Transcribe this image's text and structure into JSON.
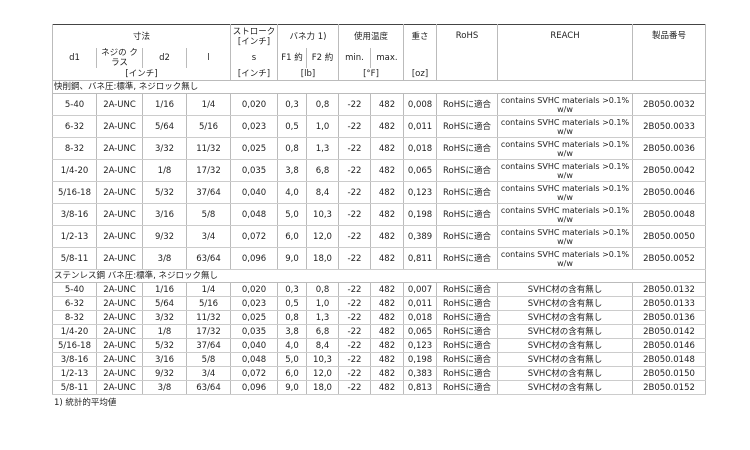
{
  "header": {
    "dimensions": "寸法",
    "stroke": "ストローク [インチ]",
    "spring_force": "バネ力 1)",
    "temp": "使用温度",
    "weight": "重さ",
    "rohs": "RoHS",
    "reach": "REACH",
    "part_no": "製品番号",
    "d1": "d1",
    "thread_class": "ネジの クラス",
    "d2": "d2",
    "l": "l",
    "s": "s",
    "f1": "F1 約",
    "f2": "F2 約",
    "min": "min.",
    "max": "max.",
    "unit_inch": "[インチ]",
    "unit_stroke": "[インチ]",
    "unit_lb": "[lb]",
    "unit_f": "[°F]",
    "unit_oz": "[oz]"
  },
  "sections": [
    {
      "title": "快削鋼、バネ圧:標準, ネジロック無し",
      "rows": [
        [
          "5-40",
          "2A-UNC",
          "1/16",
          "1/4",
          "0,020",
          "0,3",
          "0,8",
          "-22",
          "482",
          "0,008",
          "RoHSに適合",
          "contains SVHC materials >0.1% w/w",
          "2B050.0032"
        ],
        [
          "6-32",
          "2A-UNC",
          "5/64",
          "5/16",
          "0,023",
          "0,5",
          "1,0",
          "-22",
          "482",
          "0,011",
          "RoHSに適合",
          "contains SVHC materials >0.1% w/w",
          "2B050.0033"
        ],
        [
          "8-32",
          "2A-UNC",
          "3/32",
          "11/32",
          "0,025",
          "0,8",
          "1,3",
          "-22",
          "482",
          "0,018",
          "RoHSに適合",
          "contains SVHC materials >0.1% w/w",
          "2B050.0036"
        ],
        [
          "1/4-20",
          "2A-UNC",
          "1/8",
          "17/32",
          "0,035",
          "3,8",
          "6,8",
          "-22",
          "482",
          "0,065",
          "RoHSに適合",
          "contains SVHC materials >0.1% w/w",
          "2B050.0042"
        ],
        [
          "5/16-18",
          "2A-UNC",
          "5/32",
          "37/64",
          "0,040",
          "4,0",
          "8,4",
          "-22",
          "482",
          "0,123",
          "RoHSに適合",
          "contains SVHC materials >0.1% w/w",
          "2B050.0046"
        ],
        [
          "3/8-16",
          "2A-UNC",
          "3/16",
          "5/8",
          "0,048",
          "5,0",
          "10,3",
          "-22",
          "482",
          "0,198",
          "RoHSに適合",
          "contains SVHC materials >0.1% w/w",
          "2B050.0048"
        ],
        [
          "1/2-13",
          "2A-UNC",
          "9/32",
          "3/4",
          "0,072",
          "6,0",
          "12,0",
          "-22",
          "482",
          "0,389",
          "RoHSに適合",
          "contains SVHC materials >0.1% w/w",
          "2B050.0050"
        ],
        [
          "5/8-11",
          "2A-UNC",
          "3/8",
          "63/64",
          "0,096",
          "9,0",
          "18,0",
          "-22",
          "482",
          "0,811",
          "RoHSに適合",
          "contains SVHC materials >0.1% w/w",
          "2B050.0052"
        ]
      ]
    },
    {
      "title": "ステンレス鋼 バネ圧:標準, ネジロック無し",
      "rows": [
        [
          "5-40",
          "2A-UNC",
          "1/16",
          "1/4",
          "0,020",
          "0,3",
          "0,8",
          "-22",
          "482",
          "0,007",
          "RoHSに適合",
          "SVHC材の含有無し",
          "2B050.0132"
        ],
        [
          "6-32",
          "2A-UNC",
          "5/64",
          "5/16",
          "0,023",
          "0,5",
          "1,0",
          "-22",
          "482",
          "0,011",
          "RoHSに適合",
          "SVHC材の含有無し",
          "2B050.0133"
        ],
        [
          "8-32",
          "2A-UNC",
          "3/32",
          "11/32",
          "0,025",
          "0,8",
          "1,3",
          "-22",
          "482",
          "0,018",
          "RoHSに適合",
          "SVHC材の含有無し",
          "2B050.0136"
        ],
        [
          "1/4-20",
          "2A-UNC",
          "1/8",
          "17/32",
          "0,035",
          "3,8",
          "6,8",
          "-22",
          "482",
          "0,065",
          "RoHSに適合",
          "SVHC材の含有無し",
          "2B050.0142"
        ],
        [
          "5/16-18",
          "2A-UNC",
          "5/32",
          "37/64",
          "0,040",
          "4,0",
          "8,4",
          "-22",
          "482",
          "0,123",
          "RoHSに適合",
          "SVHC材の含有無し",
          "2B050.0146"
        ],
        [
          "3/8-16",
          "2A-UNC",
          "3/16",
          "5/8",
          "0,048",
          "5,0",
          "10,3",
          "-22",
          "482",
          "0,198",
          "RoHSに適合",
          "SVHC材の含有無し",
          "2B050.0148"
        ],
        [
          "1/2-13",
          "2A-UNC",
          "9/32",
          "3/4",
          "0,072",
          "6,0",
          "12,0",
          "-22",
          "482",
          "0,383",
          "RoHSに適合",
          "SVHC材の含有無し",
          "2B050.0150"
        ],
        [
          "5/8-11",
          "2A-UNC",
          "3/8",
          "63/64",
          "0,096",
          "9,0",
          "18,0",
          "-22",
          "482",
          "0,813",
          "RoHSに適合",
          "SVHC材の含有無し",
          "2B050.0152"
        ]
      ]
    }
  ],
  "footnote": "1) 統計的平均値"
}
